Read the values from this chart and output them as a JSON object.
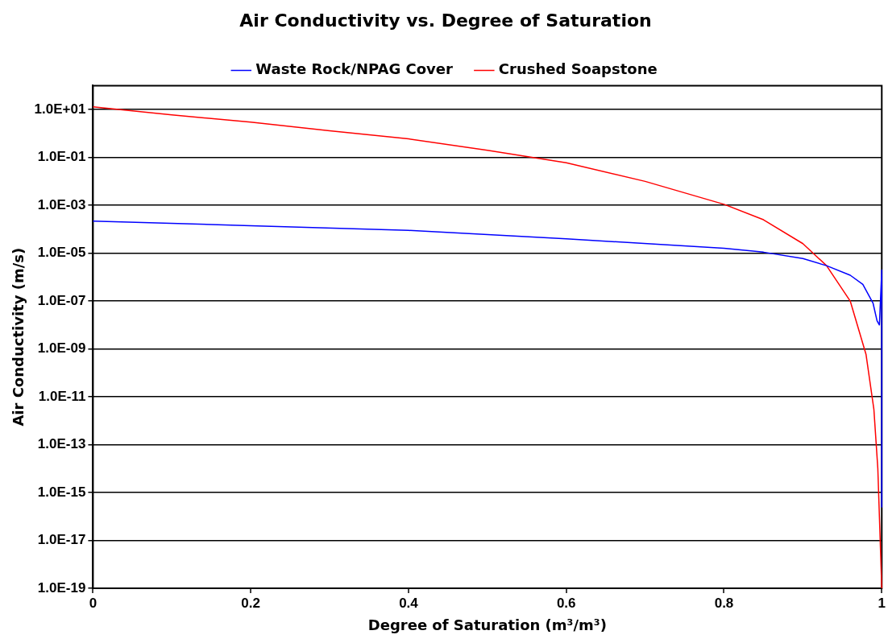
{
  "chart_data": {
    "type": "line",
    "title": "Air Conductivity vs. Degree of Saturation",
    "xlabel": "Degree of Saturation (m³/m³)",
    "ylabel": "Air Conductivity (m/s)",
    "log": "y",
    "grid": "y",
    "legend": "top",
    "marker": "none",
    "line_style": "solid",
    "xlim": [
      0,
      1
    ],
    "xticks": [
      0,
      0.2,
      0.4,
      0.6,
      0.8,
      1
    ],
    "ylim": [
      1e-19,
      100
    ],
    "yticks": [
      {
        "value": 1e-19,
        "label": "1.0E-19"
      },
      {
        "value": 1e-17,
        "label": "1.0E-17"
      },
      {
        "value": 1e-15,
        "label": "1.0E-15"
      },
      {
        "value": 1e-13,
        "label": "1.0E-13"
      },
      {
        "value": 1e-11,
        "label": "1.0E-11"
      },
      {
        "value": 1e-09,
        "label": "1.0E-09"
      },
      {
        "value": 1e-07,
        "label": "1.0E-07"
      },
      {
        "value": 1e-05,
        "label": "1.0E-05"
      },
      {
        "value": 0.001,
        "label": "1.0E-03"
      },
      {
        "value": 0.1,
        "label": "1.0E-01"
      },
      {
        "value": 10,
        "label": "1.0E+01"
      }
    ],
    "series": [
      {
        "name": "Waste Rock/NPAG Cover",
        "color": "#0000ff",
        "x": [
          0,
          0.2,
          0.4,
          0.6,
          0.8,
          0.85,
          0.9,
          0.93,
          0.96,
          0.976,
          0.989,
          0.994,
          0.997,
          1,
          1
        ],
        "values": [
          0.00022,
          0.00014,
          9e-05,
          4e-05,
          1.6e-05,
          1.1e-05,
          6e-06,
          3e-06,
          1.2e-06,
          5e-07,
          8e-08,
          1.5e-08,
          1e-08,
          2e-06,
          2.5e-16
        ]
      },
      {
        "name": "Crushed Soapstone",
        "color": "#ff0000",
        "x": [
          0,
          0.1,
          0.2,
          0.3,
          0.4,
          0.5,
          0.6,
          0.7,
          0.8,
          0.85,
          0.9,
          0.93,
          0.96,
          0.98,
          0.99,
          0.995,
          1
        ],
        "values": [
          13,
          6,
          3,
          1.3,
          0.6,
          0.2,
          0.06,
          0.01,
          0.0011,
          0.00025,
          2.5e-05,
          3e-06,
          1e-07,
          6e-10,
          3e-12,
          1e-14,
          1e-19
        ]
      }
    ]
  }
}
